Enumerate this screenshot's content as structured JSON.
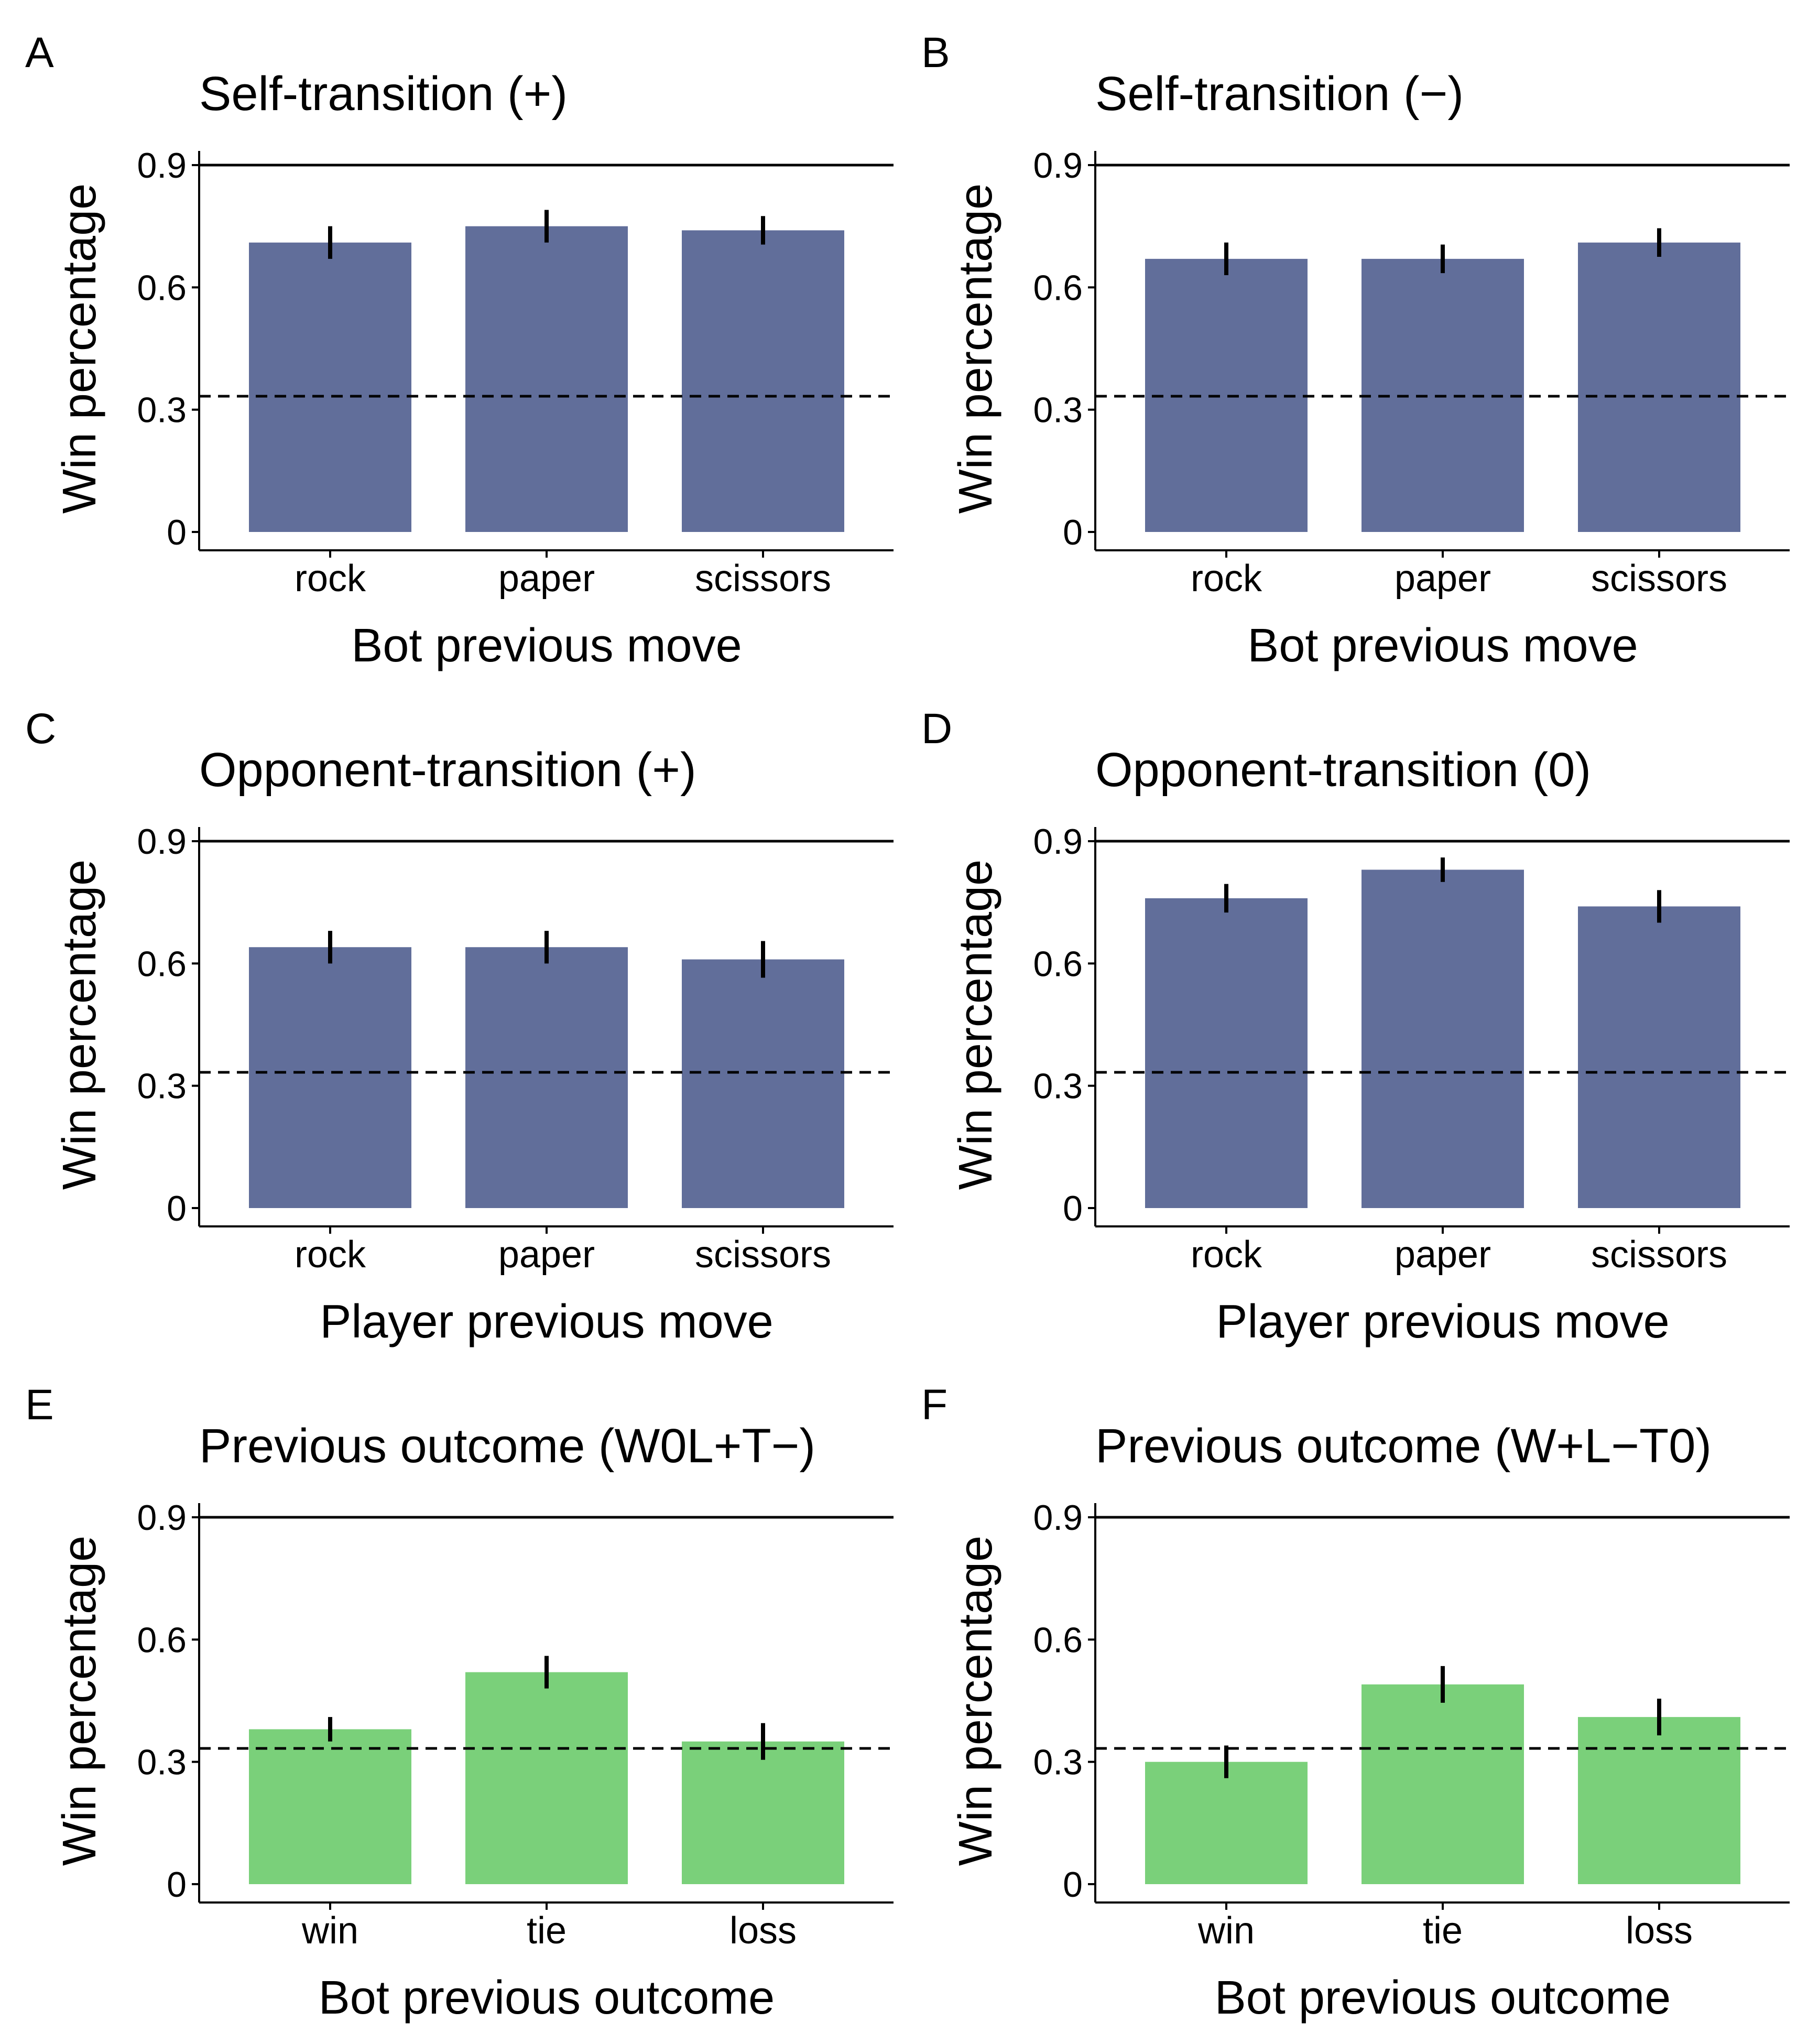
{
  "figure": {
    "colors": {
      "bar_blue": "#616e9a",
      "bar_green": "#7ad07a",
      "axis": "#000000"
    }
  },
  "chart_data": [
    {
      "panel": "A",
      "type": "bar",
      "title": "Self-transition (+)",
      "xlabel": "Bot previous move",
      "ylabel": "Win percentage",
      "categories": [
        "rock",
        "paper",
        "scissors"
      ],
      "values": [
        0.71,
        0.75,
        0.74
      ],
      "error": [
        0.04,
        0.04,
        0.035
      ],
      "ylim": [
        0,
        0.9
      ],
      "yticks": [
        0,
        0.3,
        0.6,
        0.9
      ],
      "ytick_labels": [
        "0",
        "0.3",
        "0.6",
        "0.9"
      ],
      "reference_lines": {
        "solid": 0.9,
        "dashed": 0.333
      },
      "bar_color": "bar_blue",
      "grid": false
    },
    {
      "panel": "B",
      "type": "bar",
      "title": "Self-transition (−)",
      "xlabel": "Bot previous move",
      "ylabel": "Win percentage",
      "categories": [
        "rock",
        "paper",
        "scissors"
      ],
      "values": [
        0.67,
        0.67,
        0.71
      ],
      "error": [
        0.04,
        0.035,
        0.035
      ],
      "ylim": [
        0,
        0.9
      ],
      "yticks": [
        0,
        0.3,
        0.6,
        0.9
      ],
      "ytick_labels": [
        "0",
        "0.3",
        "0.6",
        "0.9"
      ],
      "reference_lines": {
        "solid": 0.9,
        "dashed": 0.333
      },
      "bar_color": "bar_blue",
      "grid": false
    },
    {
      "panel": "C",
      "type": "bar",
      "title": "Opponent-transition (+)",
      "xlabel": "Player previous move",
      "ylabel": "Win percentage",
      "categories": [
        "rock",
        "paper",
        "scissors"
      ],
      "values": [
        0.64,
        0.64,
        0.61
      ],
      "error": [
        0.04,
        0.04,
        0.045
      ],
      "ylim": [
        0,
        0.9
      ],
      "yticks": [
        0,
        0.3,
        0.6,
        0.9
      ],
      "ytick_labels": [
        "0",
        "0.3",
        "0.6",
        "0.9"
      ],
      "reference_lines": {
        "solid": 0.9,
        "dashed": 0.333
      },
      "bar_color": "bar_blue",
      "grid": false
    },
    {
      "panel": "D",
      "type": "bar",
      "title": "Opponent-transition (0)",
      "xlabel": "Player previous move",
      "ylabel": "Win percentage",
      "categories": [
        "rock",
        "paper",
        "scissors"
      ],
      "values": [
        0.76,
        0.83,
        0.74
      ],
      "error": [
        0.035,
        0.03,
        0.04
      ],
      "ylim": [
        0,
        0.9
      ],
      "yticks": [
        0,
        0.3,
        0.6,
        0.9
      ],
      "ytick_labels": [
        "0",
        "0.3",
        "0.6",
        "0.9"
      ],
      "reference_lines": {
        "solid": 0.9,
        "dashed": 0.333
      },
      "bar_color": "bar_blue",
      "grid": false
    },
    {
      "panel": "E",
      "type": "bar",
      "title": "Previous outcome (W0L+T−)",
      "xlabel": "Bot previous outcome",
      "ylabel": "Win percentage",
      "categories": [
        "win",
        "tie",
        "loss"
      ],
      "values": [
        0.38,
        0.52,
        0.35
      ],
      "error": [
        0.03,
        0.04,
        0.045
      ],
      "ylim": [
        0,
        0.9
      ],
      "yticks": [
        0,
        0.3,
        0.6,
        0.9
      ],
      "ytick_labels": [
        "0",
        "0.3",
        "0.6",
        "0.9"
      ],
      "reference_lines": {
        "solid": 0.9,
        "dashed": 0.333
      },
      "bar_color": "bar_green",
      "grid": false
    },
    {
      "panel": "F",
      "type": "bar",
      "title": "Previous outcome (W+L−T0)",
      "xlabel": "Bot previous outcome",
      "ylabel": "Win percentage",
      "categories": [
        "win",
        "tie",
        "loss"
      ],
      "values": [
        0.3,
        0.49,
        0.41
      ],
      "error": [
        0.04,
        0.045,
        0.045
      ],
      "ylim": [
        0,
        0.9
      ],
      "yticks": [
        0,
        0.3,
        0.6,
        0.9
      ],
      "ytick_labels": [
        "0",
        "0.3",
        "0.6",
        "0.9"
      ],
      "reference_lines": {
        "solid": 0.9,
        "dashed": 0.333
      },
      "bar_color": "bar_green",
      "grid": false
    }
  ]
}
